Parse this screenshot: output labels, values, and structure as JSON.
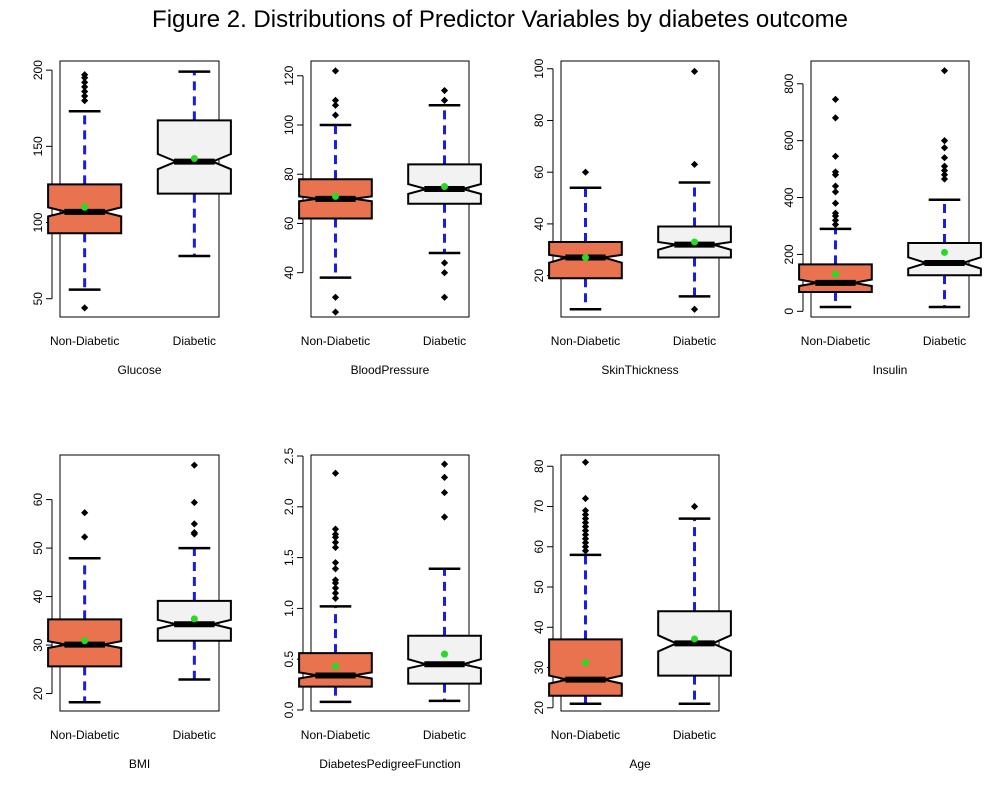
{
  "figure": {
    "title": "Figure 2. Distributions of Predictor Variables by diabetes outcome"
  },
  "colors": {
    "non_diabetic_fill": "#E8734E",
    "diabetic_fill": "#F2F2F2",
    "whisker": "#1C1CE0",
    "mean_point": "#22DD22",
    "outline": "#000000"
  },
  "chart_data": [
    {
      "type": "boxplot",
      "xlabel": "Glucose",
      "categories": [
        "Non-Diabetic",
        "Diabetic"
      ],
      "ylim": [
        38,
        206
      ],
      "yticks": [
        50,
        100,
        150,
        200
      ],
      "boxes": [
        {
          "group": "Non-Diabetic",
          "whisker_low": 56,
          "q1": 93,
          "median": 107,
          "q3": 125,
          "whisker_high": 173,
          "mean": 110,
          "notch": [
            104,
            110
          ],
          "outliers": [
            44,
            180,
            183,
            186,
            189,
            192,
            195,
            197
          ]
        },
        {
          "group": "Diabetic",
          "whisker_low": 78,
          "q1": 119,
          "median": 140,
          "q3": 167,
          "whisker_high": 199,
          "mean": 142,
          "notch": [
            135,
            145
          ],
          "outliers": []
        }
      ]
    },
    {
      "type": "boxplot",
      "xlabel": "BloodPressure",
      "categories": [
        "Non-Diabetic",
        "Diabetic"
      ],
      "ylim": [
        22,
        126
      ],
      "yticks": [
        40,
        60,
        80,
        100,
        120
      ],
      "boxes": [
        {
          "group": "Non-Diabetic",
          "whisker_low": 38,
          "q1": 62,
          "median": 70,
          "q3": 78,
          "whisker_high": 100,
          "mean": 71,
          "notch": [
            69,
            71
          ],
          "outliers": [
            24,
            30,
            104,
            108,
            110,
            122
          ]
        },
        {
          "group": "Diabetic",
          "whisker_low": 48,
          "q1": 68,
          "median": 74,
          "q3": 84,
          "whisker_high": 108,
          "mean": 75,
          "notch": [
            72,
            76
          ],
          "outliers": [
            30,
            40,
            44,
            110,
            114
          ]
        }
      ]
    },
    {
      "type": "boxplot",
      "xlabel": "SkinThickness",
      "categories": [
        "Non-Diabetic",
        "Diabetic"
      ],
      "ylim": [
        4,
        103
      ],
      "yticks": [
        20,
        40,
        60,
        80,
        100
      ],
      "boxes": [
        {
          "group": "Non-Diabetic",
          "whisker_low": 7,
          "q1": 19,
          "median": 27,
          "q3": 33,
          "whisker_high": 54,
          "mean": 27,
          "notch": [
            25,
            28
          ],
          "outliers": [
            60
          ]
        },
        {
          "group": "Diabetic",
          "whisker_low": 12,
          "q1": 27,
          "median": 32,
          "q3": 39,
          "whisker_high": 56,
          "mean": 33,
          "notch": [
            30,
            33
          ],
          "outliers": [
            7,
            63,
            99
          ]
        }
      ]
    },
    {
      "type": "boxplot",
      "xlabel": "Insulin",
      "categories": [
        "Non-Diabetic",
        "Diabetic"
      ],
      "ylim": [
        -20,
        880
      ],
      "yticks": [
        0,
        200,
        400,
        600,
        800
      ],
      "boxes": [
        {
          "group": "Non-Diabetic",
          "whisker_low": 15,
          "q1": 68,
          "median": 100,
          "q3": 165,
          "whisker_high": 290,
          "mean": 131,
          "notch": [
            89,
            112
          ],
          "outliers": [
            305,
            320,
            335,
            345,
            380,
            420,
            440,
            480,
            490,
            545,
            680,
            745
          ]
        },
        {
          "group": "Diabetic",
          "whisker_low": 15,
          "q1": 127,
          "median": 170,
          "q3": 240,
          "whisker_high": 392,
          "mean": 207,
          "notch": [
            150,
            190
          ],
          "outliers": [
            465,
            480,
            495,
            510,
            540,
            575,
            600,
            846
          ]
        }
      ]
    },
    {
      "type": "boxplot",
      "xlabel": "BMI",
      "categories": [
        "Non-Diabetic",
        "Diabetic"
      ],
      "ylim": [
        16.4,
        69.2
      ],
      "yticks": [
        20,
        30,
        40,
        50,
        60
      ],
      "boxes": [
        {
          "group": "Non-Diabetic",
          "whisker_low": 18.2,
          "q1": 25.6,
          "median": 30.1,
          "q3": 35.3,
          "whisker_high": 47.9,
          "mean": 30.9,
          "notch": [
            29.4,
            30.8
          ],
          "outliers": [
            52.3,
            57.3
          ]
        },
        {
          "group": "Diabetic",
          "whisker_low": 22.9,
          "q1": 30.9,
          "median": 34.3,
          "q3": 39.1,
          "whisker_high": 50.0,
          "mean": 35.4,
          "notch": [
            33.4,
            35.2
          ],
          "outliers": [
            52.9,
            53.2,
            55.0,
            59.4,
            67.1
          ]
        }
      ]
    },
    {
      "type": "boxplot",
      "xlabel": "DiabetesPedigreeFunction",
      "categories": [
        "Non-Diabetic",
        "Diabetic"
      ],
      "ylim": [
        -0.01,
        2.51
      ],
      "yticks": [
        0.0,
        0.5,
        1.0,
        1.5,
        2.0,
        2.5
      ],
      "ytick_labels": [
        "0.0",
        "0.5",
        "1.0",
        "1.5",
        "2.0",
        "2.5"
      ],
      "boxes": [
        {
          "group": "Non-Diabetic",
          "whisker_low": 0.08,
          "q1": 0.23,
          "median": 0.34,
          "q3": 0.56,
          "whisker_high": 1.02,
          "mean": 0.43,
          "notch": [
            0.31,
            0.37
          ],
          "outliers": [
            1.1,
            1.15,
            1.2,
            1.25,
            1.28,
            1.39,
            1.45,
            1.6,
            1.65,
            1.7,
            1.73,
            1.78,
            2.33
          ]
        },
        {
          "group": "Diabetic",
          "whisker_low": 0.09,
          "q1": 0.26,
          "median": 0.45,
          "q3": 0.73,
          "whisker_high": 1.39,
          "mean": 0.55,
          "notch": [
            0.41,
            0.5
          ],
          "outliers": [
            1.9,
            2.14,
            2.29,
            2.42
          ]
        }
      ]
    },
    {
      "type": "boxplot",
      "xlabel": "Age",
      "categories": [
        "Non-Diabetic",
        "Diabetic"
      ],
      "ylim": [
        19.2,
        82.8
      ],
      "yticks": [
        20,
        30,
        40,
        50,
        60,
        70,
        80
      ],
      "boxes": [
        {
          "group": "Non-Diabetic",
          "whisker_low": 21,
          "q1": 23,
          "median": 27,
          "q3": 37,
          "whisker_high": 58,
          "mean": 31.2,
          "notch": [
            26,
            28
          ],
          "outliers": [
            59,
            60,
            61,
            62,
            63,
            64,
            65,
            66,
            67,
            68,
            69,
            72,
            81
          ]
        },
        {
          "group": "Diabetic",
          "whisker_low": 21,
          "q1": 28,
          "median": 36,
          "q3": 44,
          "whisker_high": 67,
          "mean": 37.1,
          "notch": [
            34,
            38
          ],
          "outliers": [
            70
          ]
        }
      ]
    }
  ]
}
